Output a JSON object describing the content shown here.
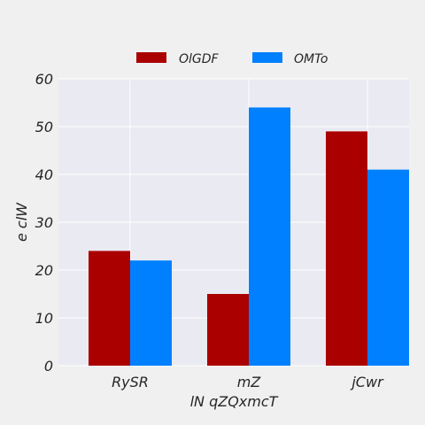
{
  "chart_data": {
    "type": "bar",
    "title": "",
    "xlabel": "lN qZQxmcT",
    "ylabel": "e clW",
    "categories": [
      "RySR",
      "mZ",
      "jCwr"
    ],
    "series": [
      {
        "name": "OlGDF",
        "color": "#aa0000",
        "values": [
          24,
          15,
          49
        ]
      },
      {
        "name": "OMTo",
        "color": "#0080ff",
        "values": [
          22,
          54,
          41
        ]
      }
    ],
    "ylim": [
      0,
      60
    ],
    "yticks": [
      0,
      10,
      20,
      30,
      40,
      50,
      60
    ],
    "grid": true,
    "legend_position": "top-center",
    "plot_background": "#eaeaf2",
    "grid_color": "#ffffff"
  }
}
